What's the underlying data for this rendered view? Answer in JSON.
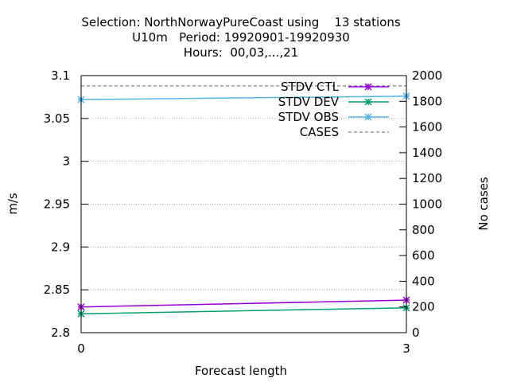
{
  "chart_data": {
    "type": "line",
    "title_lines": [
      "Selection: NorthNorwayPureCoast using    13 stations",
      "U10m   Period: 19920901-19920930",
      "Hours:  00,03,...,21"
    ],
    "xlabel": "Forecast length",
    "ylabel": "m/s",
    "y2label": "No cases",
    "x": [
      0,
      3
    ],
    "xticks": [
      "0",
      "3"
    ],
    "xlim": [
      0,
      3
    ],
    "ylim": [
      2.8,
      3.1
    ],
    "yticks": [
      "2.8",
      "2.85",
      "2.9",
      "2.95",
      "3",
      "3.05",
      "3.1"
    ],
    "y2lim": [
      0,
      2000
    ],
    "y2ticks": [
      "0",
      "200",
      "400",
      "600",
      "800",
      "1000",
      "1200",
      "1400",
      "1600",
      "1800",
      "2000"
    ],
    "grid": true,
    "legend_position": "top-right",
    "series": [
      {
        "name": "STDV CTL",
        "axis": "y",
        "values": [
          2.83,
          2.838
        ],
        "color": "#9400d3",
        "marker": "asterisk"
      },
      {
        "name": "STDV DEV",
        "axis": "y",
        "values": [
          2.822,
          2.829
        ],
        "color": "#009e73",
        "marker": "asterisk"
      },
      {
        "name": "STDV OBS",
        "axis": "y",
        "values": [
          3.072,
          3.076
        ],
        "color": "#56b4e9",
        "marker": "asterisk"
      },
      {
        "name": "CASES",
        "axis": "y2",
        "values": [
          1920,
          1920
        ],
        "color": "#808080",
        "dashed": true
      }
    ]
  }
}
